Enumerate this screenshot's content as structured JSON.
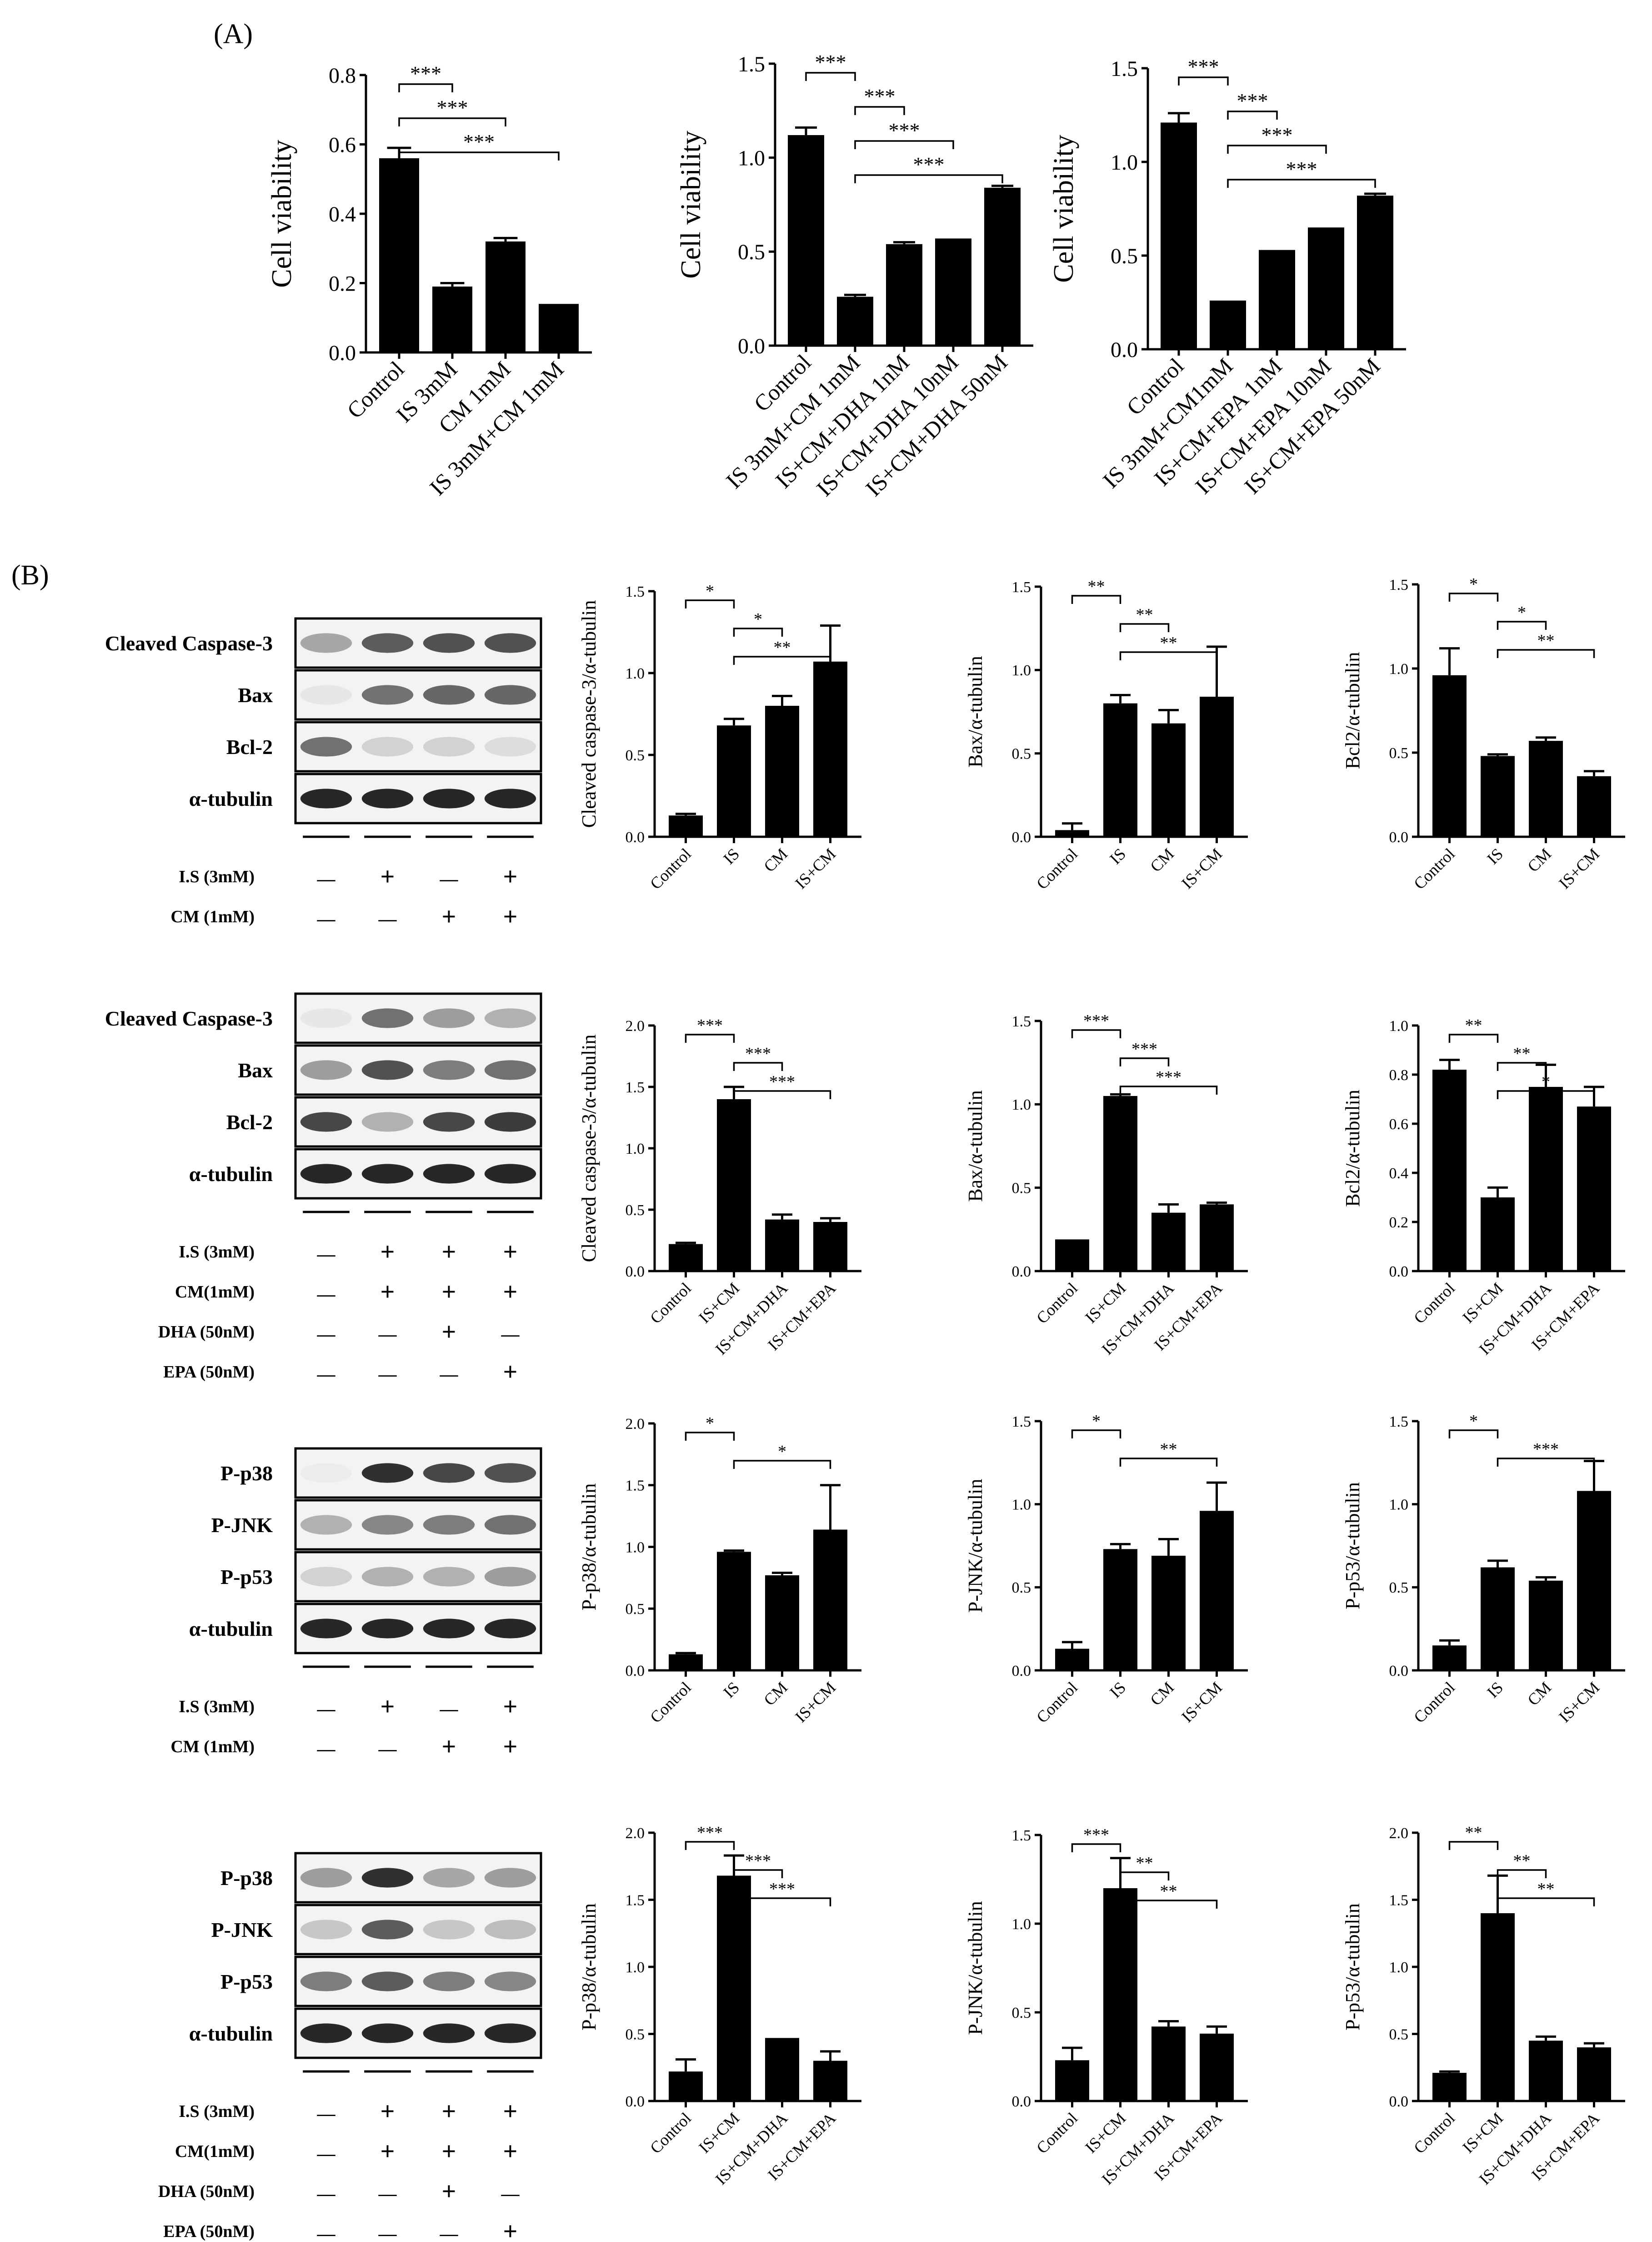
{
  "panel_labels": {
    "a": "(A)",
    "b": "(B)"
  },
  "chart_data": [
    {
      "type": "bar",
      "ylabel": "Cell viability",
      "ylim": [
        0,
        0.8
      ],
      "ticks": [
        0,
        0.2,
        0.4,
        0.6,
        0.8
      ],
      "tick_labels": [
        "0.0",
        "0.2",
        "0.4",
        "0.6",
        "0.8"
      ],
      "categories": [
        "Control",
        "IS 3mM",
        "CM 1mM",
        "IS 3mM+CM 1mM"
      ],
      "values": [
        0.56,
        0.19,
        0.32,
        0.14
      ],
      "errors": [
        0.03,
        0.01,
        0.01,
        0.0
      ],
      "significance": [
        {
          "from": 0,
          "to": 1,
          "label": "***"
        },
        {
          "from": 0,
          "to": 2,
          "label": "***"
        },
        {
          "from": 0,
          "to": 3,
          "label": "***"
        }
      ]
    },
    {
      "type": "bar",
      "ylabel": "Cell viability",
      "ylim": [
        0,
        1.5
      ],
      "ticks": [
        0,
        0.5,
        1.0,
        1.5
      ],
      "tick_labels": [
        "0.0",
        "0.5",
        "1.0",
        "1.5"
      ],
      "categories": [
        "Control",
        "IS 3mM+CM 1mM",
        "IS+CM+DHA 1nM",
        "IS+CM+DHA 10nM",
        "IS+CM+DHA 50nM"
      ],
      "values": [
        1.12,
        0.26,
        0.54,
        0.57,
        0.84
      ],
      "errors": [
        0.04,
        0.01,
        0.01,
        0.0,
        0.01
      ],
      "significance": [
        {
          "from": 0,
          "to": 1,
          "label": "***"
        },
        {
          "from": 1,
          "to": 2,
          "label": "***"
        },
        {
          "from": 1,
          "to": 3,
          "label": "***"
        },
        {
          "from": 1,
          "to": 4,
          "label": "***"
        }
      ]
    },
    {
      "type": "bar",
      "ylabel": "Cell viability",
      "ylim": [
        0,
        1.5
      ],
      "ticks": [
        0,
        0.5,
        1.0,
        1.5
      ],
      "tick_labels": [
        "0.0",
        "0.5",
        "1.0",
        "1.5"
      ],
      "categories": [
        "Control",
        "IS 3mM+CM1mM",
        "IS+CM+EPA 1nM",
        "IS+CM+EPA 10nM",
        "IS+CM+EPA 50nM"
      ],
      "values": [
        1.21,
        0.26,
        0.53,
        0.65,
        0.82
      ],
      "errors": [
        0.05,
        0.0,
        0.0,
        0.0,
        0.01
      ],
      "significance": [
        {
          "from": 0,
          "to": 1,
          "label": "***"
        },
        {
          "from": 1,
          "to": 2,
          "label": "***"
        },
        {
          "from": 1,
          "to": 3,
          "label": "***"
        },
        {
          "from": 1,
          "to": 4,
          "label": "***"
        }
      ]
    },
    {
      "type": "bar",
      "ylabel": "Cleaved caspase-3/α-tubulin",
      "ylim": [
        0,
        1.5
      ],
      "ticks": [
        0,
        0.5,
        1.0,
        1.5
      ],
      "tick_labels": [
        "0.0",
        "0.5",
        "1.0",
        "1.5"
      ],
      "categories": [
        "Control",
        "IS",
        "CM",
        "IS+CM"
      ],
      "values": [
        0.13,
        0.68,
        0.8,
        1.07
      ],
      "errors": [
        0.01,
        0.04,
        0.06,
        0.22
      ],
      "significance": [
        {
          "from": 0,
          "to": 1,
          "label": "*"
        },
        {
          "from": 1,
          "to": 2,
          "label": "*"
        },
        {
          "from": 1,
          "to": 3,
          "label": "**"
        }
      ]
    },
    {
      "type": "bar",
      "ylabel": "Bax/α-tubulin",
      "ylim": [
        0,
        1.5
      ],
      "ticks": [
        0,
        0.5,
        1.0,
        1.5
      ],
      "tick_labels": [
        "0.0",
        "0.5",
        "1.0",
        "1.5"
      ],
      "categories": [
        "Control",
        "IS",
        "CM",
        "IS+CM"
      ],
      "values": [
        0.04,
        0.8,
        0.68,
        0.84
      ],
      "errors": [
        0.04,
        0.05,
        0.08,
        0.3
      ],
      "significance": [
        {
          "from": 0,
          "to": 1,
          "label": "**"
        },
        {
          "from": 1,
          "to": 2,
          "label": "**"
        },
        {
          "from": 1,
          "to": 3,
          "label": "**"
        }
      ]
    },
    {
      "type": "bar",
      "ylabel": "Bcl2/α-tubulin",
      "ylim": [
        0,
        1.5
      ],
      "ticks": [
        0,
        0.5,
        1.0,
        1.5
      ],
      "tick_labels": [
        "0.0",
        "0.5",
        "1.0",
        "1.5"
      ],
      "categories": [
        "Control",
        "IS",
        "CM",
        "IS+CM"
      ],
      "values": [
        0.96,
        0.48,
        0.57,
        0.36
      ],
      "errors": [
        0.16,
        0.01,
        0.02,
        0.03
      ],
      "significance": [
        {
          "from": 0,
          "to": 1,
          "label": "*"
        },
        {
          "from": 1,
          "to": 2,
          "label": "*"
        },
        {
          "from": 1,
          "to": 3,
          "label": "**"
        }
      ]
    },
    {
      "type": "bar",
      "ylabel": "Cleaved caspase-3/α-tubulin",
      "ylim": [
        0,
        2.0
      ],
      "ticks": [
        0,
        0.5,
        1.0,
        1.5,
        2.0
      ],
      "tick_labels": [
        "0.0",
        "0.5",
        "1.0",
        "1.5",
        "2.0"
      ],
      "categories": [
        "Control",
        "IS+CM",
        "IS+CM+DHA",
        "IS+CM+EPA"
      ],
      "values": [
        0.22,
        1.4,
        0.42,
        0.4
      ],
      "errors": [
        0.01,
        0.1,
        0.04,
        0.03
      ],
      "significance": [
        {
          "from": 0,
          "to": 1,
          "label": "***"
        },
        {
          "from": 1,
          "to": 2,
          "label": "***"
        },
        {
          "from": 1,
          "to": 3,
          "label": "***"
        }
      ]
    },
    {
      "type": "bar",
      "ylabel": "Bax/α-tubulin",
      "ylim": [
        0,
        1.5
      ],
      "ticks": [
        0,
        0.5,
        1.0,
        1.5
      ],
      "tick_labels": [
        "0.0",
        "0.5",
        "1.0",
        "1.5"
      ],
      "categories": [
        "Control",
        "IS+CM",
        "IS+CM+DHA",
        "IS+CM+EPA"
      ],
      "values": [
        0.19,
        1.05,
        0.35,
        0.4
      ],
      "errors": [
        0.0,
        0.01,
        0.05,
        0.01
      ],
      "significance": [
        {
          "from": 0,
          "to": 1,
          "label": "***"
        },
        {
          "from": 1,
          "to": 2,
          "label": "***"
        },
        {
          "from": 1,
          "to": 3,
          "label": "***"
        }
      ]
    },
    {
      "type": "bar",
      "ylabel": "Bcl2/α-tubulin",
      "ylim": [
        0,
        1.0
      ],
      "ticks": [
        0,
        0.2,
        0.4,
        0.6,
        0.8,
        1.0
      ],
      "tick_labels": [
        "0.0",
        "0.2",
        "0.4",
        "0.6",
        "0.8",
        "1.0"
      ],
      "categories": [
        "Control",
        "IS+CM",
        "IS+CM+DHA",
        "IS+CM+EPA"
      ],
      "values": [
        0.82,
        0.3,
        0.75,
        0.67
      ],
      "errors": [
        0.04,
        0.04,
        0.09,
        0.08
      ],
      "significance": [
        {
          "from": 0,
          "to": 1,
          "label": "**"
        },
        {
          "from": 1,
          "to": 2,
          "label": "**"
        },
        {
          "from": 1,
          "to": 3,
          "label": "*"
        }
      ]
    },
    {
      "type": "bar",
      "ylabel": "P-p38/α-tubulin",
      "ylim": [
        0,
        2.0
      ],
      "ticks": [
        0,
        0.5,
        1.0,
        1.5,
        2.0
      ],
      "tick_labels": [
        "0.0",
        "0.5",
        "1.0",
        "1.5",
        "2.0"
      ],
      "categories": [
        "Control",
        "IS",
        "CM",
        "IS+CM"
      ],
      "values": [
        0.13,
        0.96,
        0.77,
        1.14
      ],
      "errors": [
        0.01,
        0.01,
        0.02,
        0.36
      ],
      "significance": [
        {
          "from": 0,
          "to": 1,
          "label": "*"
        },
        {
          "from": 1,
          "to": 3,
          "label": "*"
        }
      ]
    },
    {
      "type": "bar",
      "ylabel": "P-JNK/α-tubulin",
      "ylim": [
        0,
        1.5
      ],
      "ticks": [
        0,
        0.5,
        1.0,
        1.5
      ],
      "tick_labels": [
        "0.0",
        "0.5",
        "1.0",
        "1.5"
      ],
      "categories": [
        "Control",
        "IS",
        "CM",
        "IS+CM"
      ],
      "values": [
        0.13,
        0.73,
        0.69,
        0.96
      ],
      "errors": [
        0.04,
        0.03,
        0.1,
        0.17
      ],
      "significance": [
        {
          "from": 0,
          "to": 1,
          "label": "*"
        },
        {
          "from": 1,
          "to": 3,
          "label": "**"
        }
      ]
    },
    {
      "type": "bar",
      "ylabel": "P-p53/α-tubulin",
      "ylim": [
        0,
        1.5
      ],
      "ticks": [
        0,
        0.5,
        1.0,
        1.5
      ],
      "tick_labels": [
        "0.0",
        "0.5",
        "1.0",
        "1.5"
      ],
      "categories": [
        "Control",
        "IS",
        "CM",
        "IS+CM"
      ],
      "values": [
        0.15,
        0.62,
        0.54,
        1.08
      ],
      "errors": [
        0.03,
        0.04,
        0.02,
        0.18
      ],
      "significance": [
        {
          "from": 0,
          "to": 1,
          "label": "*"
        },
        {
          "from": 1,
          "to": 3,
          "label": "***"
        }
      ]
    },
    {
      "type": "bar",
      "ylabel": "P-p38/α-tubulin",
      "ylim": [
        0,
        2.0
      ],
      "ticks": [
        0,
        0.5,
        1.0,
        1.5,
        2.0
      ],
      "tick_labels": [
        "0.0",
        "0.5",
        "1.0",
        "1.5",
        "2.0"
      ],
      "categories": [
        "Control",
        "IS+CM",
        "IS+CM+DHA",
        "IS+CM+EPA"
      ],
      "values": [
        0.22,
        1.68,
        0.47,
        0.3
      ],
      "errors": [
        0.09,
        0.15,
        0.0,
        0.07
      ],
      "significance": [
        {
          "from": 0,
          "to": 1,
          "label": "***"
        },
        {
          "from": 1,
          "to": 2,
          "label": "***"
        },
        {
          "from": 1,
          "to": 3,
          "label": "***"
        }
      ]
    },
    {
      "type": "bar",
      "ylabel": "P-JNK/α-tubulin",
      "ylim": [
        0,
        1.5
      ],
      "ticks": [
        0,
        0.5,
        1.0,
        1.5
      ],
      "tick_labels": [
        "0.0",
        "0.5",
        "1.0",
        "1.5"
      ],
      "categories": [
        "Control",
        "IS+CM",
        "IS+CM+DHA",
        "IS+CM+EPA"
      ],
      "values": [
        0.23,
        1.2,
        0.42,
        0.38
      ],
      "errors": [
        0.07,
        0.17,
        0.03,
        0.04
      ],
      "significance": [
        {
          "from": 0,
          "to": 1,
          "label": "***"
        },
        {
          "from": 1,
          "to": 2,
          "label": "**"
        },
        {
          "from": 1,
          "to": 3,
          "label": "**"
        }
      ]
    },
    {
      "type": "bar",
      "ylabel": "P-p53/α-tubulin",
      "ylim": [
        0,
        2.0
      ],
      "ticks": [
        0,
        0.5,
        1.0,
        1.5,
        2.0
      ],
      "tick_labels": [
        "0.0",
        "0.5",
        "1.0",
        "1.5",
        "2.0"
      ],
      "categories": [
        "Control",
        "IS+CM",
        "IS+CM+DHA",
        "IS+CM+EPA"
      ],
      "values": [
        0.21,
        1.4,
        0.45,
        0.4
      ],
      "errors": [
        0.01,
        0.28,
        0.03,
        0.03
      ],
      "significance": [
        {
          "from": 0,
          "to": 1,
          "label": "**"
        },
        {
          "from": 1,
          "to": 2,
          "label": "**"
        },
        {
          "from": 1,
          "to": 3,
          "label": "**"
        }
      ]
    }
  ],
  "blots": [
    {
      "bands": [
        {
          "label": "Cleaved Caspase-3",
          "lanes": [
            0.35,
            0.7,
            0.75,
            0.75
          ]
        },
        {
          "label": "Bax",
          "lanes": [
            0.05,
            0.6,
            0.65,
            0.65
          ]
        },
        {
          "label": "Bcl-2",
          "lanes": [
            0.6,
            0.15,
            0.15,
            0.1
          ]
        },
        {
          "label": "α-tubulin",
          "lanes": [
            0.95,
            0.95,
            0.95,
            0.95
          ]
        }
      ],
      "conditions": [
        {
          "label": "I.S (3mM)",
          "marks": [
            "—",
            "+",
            "—",
            "+"
          ]
        },
        {
          "label": "CM (1mM)",
          "marks": [
            "—",
            "—",
            "+",
            "+"
          ]
        }
      ]
    },
    {
      "bands": [
        {
          "label": "Cleaved Caspase-3",
          "lanes": [
            0.05,
            0.6,
            0.4,
            0.3
          ]
        },
        {
          "label": "Bax",
          "lanes": [
            0.4,
            0.75,
            0.55,
            0.6
          ]
        },
        {
          "label": "Bcl-2",
          "lanes": [
            0.8,
            0.3,
            0.8,
            0.85
          ]
        },
        {
          "label": "α-tubulin",
          "lanes": [
            0.95,
            0.95,
            0.95,
            0.95
          ]
        }
      ],
      "conditions": [
        {
          "label": "I.S (3mM)",
          "marks": [
            "—",
            "+",
            "+",
            "+"
          ]
        },
        {
          "label": "CM(1mM)",
          "marks": [
            "—",
            "+",
            "+",
            "+"
          ]
        },
        {
          "label": "DHA (50nM)",
          "marks": [
            "—",
            "—",
            "+",
            "—"
          ]
        },
        {
          "label": "EPA (50nM)",
          "marks": [
            "—",
            "—",
            "—",
            "+"
          ]
        }
      ]
    },
    {
      "bands": [
        {
          "label": "P-p38",
          "lanes": [
            0.03,
            0.9,
            0.8,
            0.75
          ]
        },
        {
          "label": "P-JNK",
          "lanes": [
            0.3,
            0.5,
            0.55,
            0.6
          ]
        },
        {
          "label": "P-p53",
          "lanes": [
            0.15,
            0.3,
            0.3,
            0.4
          ]
        },
        {
          "label": "α-tubulin",
          "lanes": [
            0.95,
            0.95,
            0.95,
            0.95
          ]
        }
      ],
      "conditions": [
        {
          "label": "I.S (3mM)",
          "marks": [
            "—",
            "+",
            "—",
            "+"
          ]
        },
        {
          "label": "CM (1mM)",
          "marks": [
            "—",
            "—",
            "+",
            "+"
          ]
        }
      ]
    },
    {
      "bands": [
        {
          "label": "P-p38",
          "lanes": [
            0.4,
            0.9,
            0.35,
            0.4
          ]
        },
        {
          "label": "P-JNK",
          "lanes": [
            0.2,
            0.7,
            0.2,
            0.25
          ]
        },
        {
          "label": "P-p53",
          "lanes": [
            0.55,
            0.7,
            0.55,
            0.5
          ]
        },
        {
          "label": "α-tubulin",
          "lanes": [
            0.95,
            0.95,
            0.95,
            0.95
          ]
        }
      ],
      "conditions": [
        {
          "label": "I.S (3mM)",
          "marks": [
            "—",
            "+",
            "+",
            "+"
          ]
        },
        {
          "label": "CM(1mM)",
          "marks": [
            "—",
            "+",
            "+",
            "+"
          ]
        },
        {
          "label": "DHA (50nM)",
          "marks": [
            "—",
            "—",
            "+",
            "—"
          ]
        },
        {
          "label": "EPA (50nM)",
          "marks": [
            "—",
            "—",
            "—",
            "+"
          ]
        }
      ]
    }
  ]
}
